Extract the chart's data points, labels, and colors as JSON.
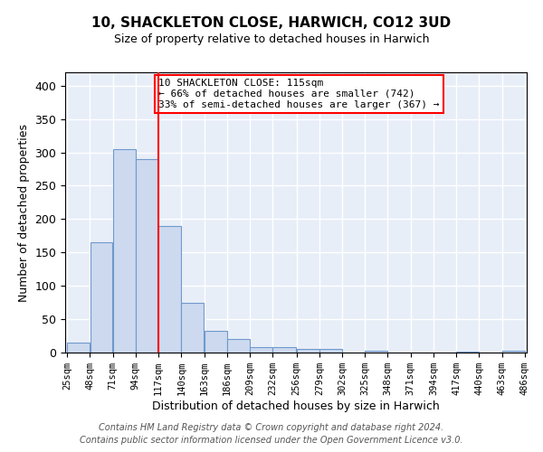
{
  "title": "10, SHACKLETON CLOSE, HARWICH, CO12 3UD",
  "subtitle": "Size of property relative to detached houses in Harwich",
  "xlabel": "Distribution of detached houses by size in Harwich",
  "ylabel": "Number of detached properties",
  "bar_color": "#ccd9ef",
  "bar_edge_color": "#7099cc",
  "background_color": "#e8eef8",
  "grid_color": "white",
  "vline_x": 117,
  "vline_color": "red",
  "bin_edges": [
    25,
    48,
    71,
    94,
    117,
    140,
    163,
    186,
    209,
    232,
    256,
    279,
    302,
    325,
    348,
    371,
    394,
    417,
    440,
    463,
    486
  ],
  "bin_heights": [
    15,
    165,
    305,
    290,
    190,
    75,
    32,
    20,
    8,
    8,
    5,
    5,
    0,
    3,
    0,
    0,
    0,
    2,
    0,
    3
  ],
  "annotation_line1": "10 SHACKLETON CLOSE: 115sqm",
  "annotation_line2": "← 66% of detached houses are smaller (742)",
  "annotation_line3": "33% of semi-detached houses are larger (367) →",
  "annotation_box_color": "white",
  "annotation_box_edge": "red",
  "ylim": [
    0,
    420
  ],
  "yticks": [
    0,
    50,
    100,
    150,
    200,
    250,
    300,
    350,
    400
  ],
  "footnote1": "Contains HM Land Registry data © Crown copyright and database right 2024.",
  "footnote2": "Contains public sector information licensed under the Open Government Licence v3.0.",
  "tick_labels": [
    "25sqm",
    "48sqm",
    "71sqm",
    "94sqm",
    "117sqm",
    "140sqm",
    "163sqm",
    "186sqm",
    "209sqm",
    "232sqm",
    "256sqm",
    "279sqm",
    "302sqm",
    "325sqm",
    "348sqm",
    "371sqm",
    "394sqm",
    "417sqm",
    "440sqm",
    "463sqm",
    "486sqm"
  ]
}
